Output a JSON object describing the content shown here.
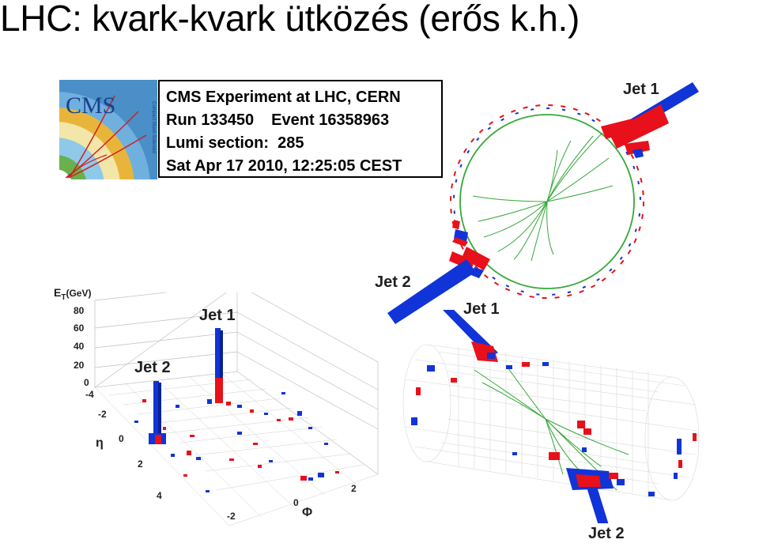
{
  "slide": {
    "title": "LHC: kvark-kvark ütközés (erős k.h.)"
  },
  "logo": {
    "text": "CMS",
    "subtitle": "Compact Muon Solenoid"
  },
  "event_info": {
    "experiment": "CMS Experiment at LHC, CERN",
    "run_label": "Run 133450",
    "event_label": "Event 16358963",
    "lumi_label": "Lumi section:",
    "lumi_value": "285",
    "datetime": "Sat Apr 17 2010, 12:25:05 CEST"
  },
  "transverse_view": {
    "jet1_label": "Jet 1",
    "jet2_label": "Jet 2"
  },
  "lego_plot": {
    "z_axis_label": "E",
    "z_axis_sub": "T",
    "z_axis_unit": "(GeV)",
    "z_ticks": [
      "80",
      "60",
      "40",
      "20",
      "0"
    ],
    "eta_label": "η",
    "eta_ticks": [
      "-4",
      "-2",
      "0",
      "2",
      "4"
    ],
    "phi_label": "Φ",
    "phi_ticks": [
      "-2",
      "0",
      "2"
    ],
    "jet1_label": "Jet 1",
    "jet2_label": "Jet 2"
  },
  "cylinder_view": {
    "jet1_label": "Jet 1",
    "jet2_label": "Jet 2"
  },
  "colors": {
    "ecal": "#e8101a",
    "hcal": "#1034d8",
    "tracks": "#36a83a",
    "label": "#1f1f1f"
  }
}
